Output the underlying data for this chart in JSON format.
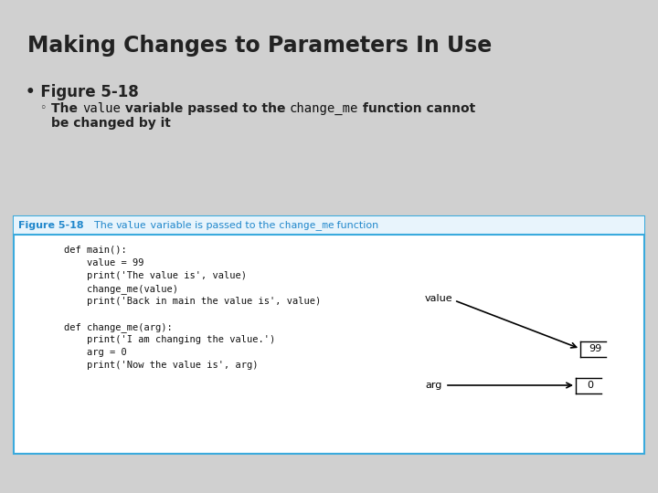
{
  "title": "Making Changes to Parameters In Use",
  "bullet1": "• Figure 5-18",
  "sub_bullet_prefix": "◦ ",
  "sub_line1": [
    {
      "text": "The ",
      "style": "normal"
    },
    {
      "text": "value",
      "style": "code"
    },
    {
      "text": " variable passed to the ",
      "style": "normal"
    },
    {
      "text": "change_me",
      "style": "code"
    },
    {
      "text": " function cannot",
      "style": "normal"
    }
  ],
  "sub_line2": "be changed by it",
  "fig_label": "Figure 5-18",
  "fig_caption": [
    {
      "text": "  The ",
      "style": "normal"
    },
    {
      "text": "value",
      "style": "code"
    },
    {
      "text": " variable is passed to the ",
      "style": "normal"
    },
    {
      "text": "change_me",
      "style": "code"
    },
    {
      "text": " function",
      "style": "normal"
    }
  ],
  "code_lines": [
    "def main():",
    "    value = 99",
    "    print('The value is', value)",
    "    change_me(value)",
    "    print('Back in main the value is', value)",
    "",
    "def change_me(arg):",
    "    print('I am changing the value.')",
    "    arg = 0",
    "    print('Now the value is', arg)"
  ],
  "bg_color": "#d0d0d0",
  "code_bg": "#ffffff",
  "caption_bg": "#e8f4fc",
  "box_border": "#3aaadd",
  "title_color": "#222222",
  "bullet_color": "#222222",
  "fig_label_color": "#2288cc",
  "fig_caption_color": "#2288cc",
  "code_color": "#111111",
  "value_label": "value",
  "value_box": "99",
  "arg_label": "arg",
  "arg_box": "0"
}
